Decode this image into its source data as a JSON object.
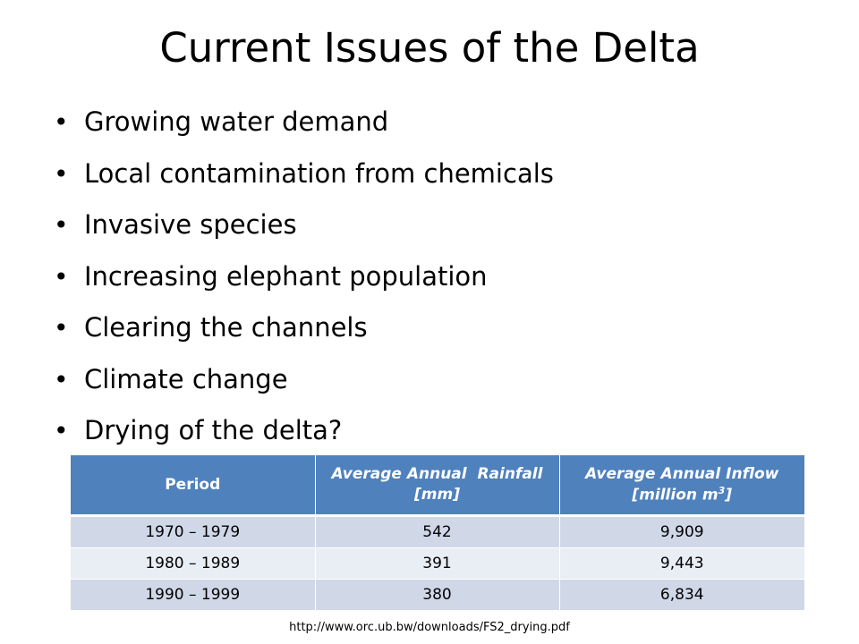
{
  "slide": {
    "title": "Current Issues of the Delta",
    "bullets": [
      "Growing water demand",
      "Local contamination from chemicals",
      "Invasive species",
      "Increasing elephant population",
      "Clearing the channels",
      "Climate change",
      "Drying of the delta?"
    ],
    "bullet_glyph": "•",
    "table": {
      "headers": {
        "period": "Period",
        "rainfall_line1": "Average Annual  Rainfall",
        "rainfall_line2": "[mm]",
        "inflow_line1": "Average Annual Inflow",
        "inflow_line2_pre": "[million m",
        "inflow_line2_sup": "3",
        "inflow_line2_post": "]"
      },
      "rows": [
        {
          "period": "1970 – 1979",
          "rainfall": "542",
          "inflow": "9,909"
        },
        {
          "period": "1980 – 1989",
          "rainfall": "391",
          "inflow": "9,443"
        },
        {
          "period": "1990 – 1999",
          "rainfall": "380",
          "inflow": "6,834"
        }
      ]
    },
    "source": "http://www.orc.ub.bw/downloads/FS2_drying.pdf"
  }
}
